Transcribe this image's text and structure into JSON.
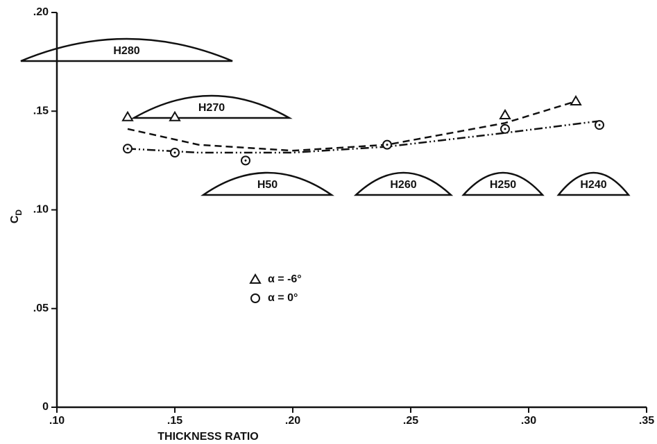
{
  "chart_data": {
    "type": "scatter",
    "x_label": "THICKNESS RATIO",
    "y_label": "C",
    "y_label_subscript": "D",
    "xlim": [
      0.1,
      0.35
    ],
    "ylim": [
      0,
      0.2
    ],
    "xticks": [
      {
        "value": 0.1,
        "label": ".10"
      },
      {
        "value": 0.15,
        "label": ".15"
      },
      {
        "value": 0.2,
        "label": ".20"
      },
      {
        "value": 0.25,
        "label": ".25"
      },
      {
        "value": 0.3,
        "label": ".30"
      },
      {
        "value": 0.35,
        "label": ".35"
      }
    ],
    "yticks": [
      0,
      {
        "value": 0.05,
        "label": ".05"
      },
      {
        "value": 0.1,
        "label": ".10"
      },
      {
        "value": 0.15,
        "label": ".15"
      },
      {
        "value": 0.2,
        "label": ".20"
      }
    ],
    "legend": "center",
    "color": "#111111",
    "series": [
      {
        "name": "α = -6°",
        "marker": "triangle",
        "x": [
          0.13,
          0.15,
          0.29,
          0.32
        ],
        "values": [
          0.147,
          0.147,
          0.148,
          0.155
        ]
      },
      {
        "name": "α = 0°",
        "marker": "circle",
        "x": [
          0.13,
          0.15,
          0.18,
          0.24,
          0.29,
          0.33
        ],
        "values": [
          0.131,
          0.129,
          0.125,
          0.133,
          0.141,
          0.143
        ]
      }
    ],
    "fit_curves": [
      {
        "style": "dashed",
        "x": [
          0.13,
          0.16,
          0.2,
          0.24,
          0.29,
          0.32
        ],
        "values": [
          0.141,
          0.133,
          0.13,
          0.133,
          0.144,
          0.155
        ]
      },
      {
        "style": "dash-dot",
        "x": [
          0.13,
          0.16,
          0.2,
          0.24,
          0.29,
          0.33
        ],
        "values": [
          0.131,
          0.129,
          0.129,
          0.132,
          0.139,
          0.145
        ]
      }
    ],
    "annotations": [
      "H280",
      "H270",
      "H50",
      "H260",
      "H250",
      "H240"
    ]
  }
}
